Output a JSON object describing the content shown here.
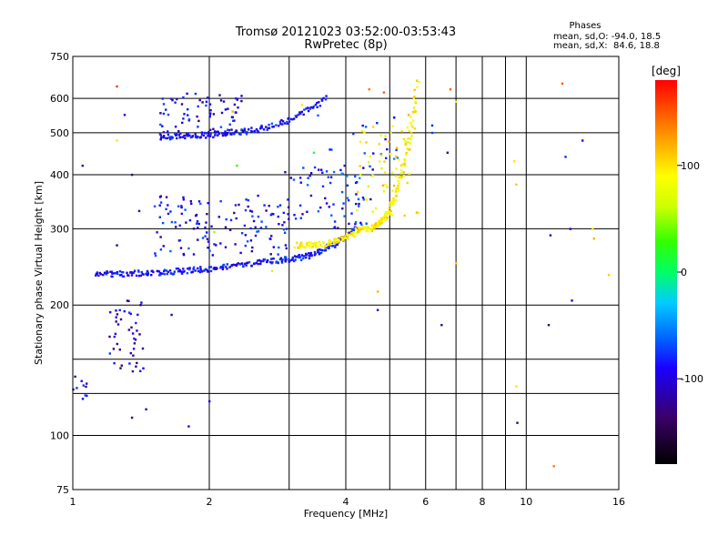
{
  "chart_data": {
    "type": "scatter",
    "title": "Tromsø 20121023 03:52:00-03:53:43",
    "subtitle": "RwPretec (8p)",
    "xlabel": "Frequency [MHz]",
    "ylabel": "Stationary phase Virtual Height [km]",
    "x_scale": "log",
    "y_scale": "log",
    "xlim": [
      1,
      16
    ],
    "ylim": [
      75,
      750
    ],
    "x_ticks": [
      1,
      2,
      4,
      6,
      8,
      10,
      16
    ],
    "x_tick_labels": [
      "1",
      "2",
      "4",
      "6",
      "8",
      "10",
      "16"
    ],
    "x_minor_grid": [
      3,
      5,
      7,
      9
    ],
    "y_ticks": [
      75,
      100,
      200,
      300,
      400,
      500,
      600,
      750
    ],
    "y_tick_labels": [
      "75",
      "100",
      "200",
      "300",
      "400",
      "500",
      "600",
      "750"
    ],
    "y_minor_grid": [
      125,
      150
    ],
    "grid": true,
    "phase_stats": {
      "title": "Phases",
      "line_o": "mean, sd,O: -94.0, 18.5",
      "line_x": "mean, sd,X:  84.6, 18.8"
    },
    "colorbar": {
      "label": "[deg]",
      "range": [
        -180,
        180
      ],
      "ticks": [
        -100,
        0,
        100
      ],
      "tick_labels": [
        "-100",
        "0",
        "100"
      ]
    },
    "traces": [
      {
        "name": "",
        "mode": "O",
        "phase": -95,
        "x_range": [
          1.12,
          2.9
        ],
        "y_range": [
          236,
          255
        ],
        "n": 90
      },
      {
        "name": "",
        "mode": "O",
        "phase": -95,
        "x_range": [
          2.9,
          4.2
        ],
        "y_range": [
          255,
          300
        ],
        "n": 50
      },
      {
        "name": "",
        "mode": "O",
        "phase": -100,
        "x_range": [
          1.55,
          2.2
        ],
        "y_range": [
          490,
          500
        ],
        "n": 40
      },
      {
        "name": "",
        "mode": "O",
        "phase": -95,
        "x_range": [
          2.2,
          3.6
        ],
        "y_range": [
          500,
          600
        ],
        "n": 45
      },
      {
        "name": "",
        "mode": "X",
        "phase": 95,
        "x_range": [
          3.1,
          4.3
        ],
        "y_range": [
          275,
          300
        ],
        "n": 45
      },
      {
        "name": "",
        "mode": "X",
        "phase": 95,
        "x_range": [
          4.3,
          5.75
        ],
        "y_range": [
          300,
          650
        ],
        "n": 70
      }
    ],
    "clouds": [
      {
        "phase": -100,
        "x_range": [
          1.5,
          3.0
        ],
        "y_range": [
          260,
          360
        ],
        "n": 130
      },
      {
        "phase": -105,
        "x_range": [
          1.55,
          2.4
        ],
        "y_range": [
          500,
          620
        ],
        "n": 70
      },
      {
        "phase": -95,
        "x_range": [
          2.9,
          4.6
        ],
        "y_range": [
          300,
          420
        ],
        "n": 70
      },
      {
        "phase": -85,
        "x_range": [
          3.3,
          5.3
        ],
        "y_range": [
          390,
          560
        ],
        "n": 25
      },
      {
        "phase": 95,
        "x_range": [
          4.2,
          5.8
        ],
        "y_range": [
          320,
          520
        ],
        "n": 60
      },
      {
        "phase": -110,
        "x_range": [
          1.2,
          1.43
        ],
        "y_range": [
          140,
          205
        ],
        "n": 45
      },
      {
        "phase": -105,
        "x_range": [
          1.0,
          1.08
        ],
        "y_range": [
          120,
          137
        ],
        "n": 10
      }
    ],
    "scatter_points": [
      [
        1.05,
        420,
        -120
      ],
      [
        1.25,
        640,
        160
      ],
      [
        1.3,
        550,
        -100
      ],
      [
        1.35,
        400,
        -140
      ],
      [
        1.25,
        480,
        100
      ],
      [
        1.65,
        190,
        -120
      ],
      [
        1.8,
        105,
        -110
      ],
      [
        1.45,
        115,
        -130
      ],
      [
        1.35,
        110,
        -140
      ],
      [
        2.0,
        120,
        -100
      ],
      [
        2.05,
        295,
        50
      ],
      [
        2.25,
        560,
        120
      ],
      [
        2.3,
        420,
        30
      ],
      [
        2.75,
        240,
        60
      ],
      [
        3.2,
        580,
        100
      ],
      [
        3.4,
        450,
        20
      ],
      [
        4.7,
        195,
        -110
      ],
      [
        4.7,
        215,
        120
      ],
      [
        4.85,
        620,
        150
      ],
      [
        4.5,
        630,
        140
      ],
      [
        5.5,
        550,
        120
      ],
      [
        5.7,
        560,
        110
      ],
      [
        6.2,
        520,
        -90
      ],
      [
        6.2,
        500,
        -80
      ],
      [
        6.5,
        180,
        -130
      ],
      [
        6.7,
        450,
        -120
      ],
      [
        6.8,
        630,
        150
      ],
      [
        7.0,
        590,
        80
      ],
      [
        7.0,
        250,
        110
      ],
      [
        9.4,
        430,
        100
      ],
      [
        9.5,
        380,
        110
      ],
      [
        9.5,
        130,
        100
      ],
      [
        9.55,
        107,
        -130
      ],
      [
        11.2,
        180,
        -140
      ],
      [
        11.3,
        290,
        -120
      ],
      [
        11.5,
        85,
        140
      ],
      [
        12.0,
        650,
        150
      ],
      [
        12.2,
        440,
        -90
      ],
      [
        12.5,
        300,
        -100
      ],
      [
        12.6,
        205,
        -110
      ],
      [
        13.3,
        480,
        -100
      ],
      [
        14.0,
        300,
        100
      ],
      [
        14.1,
        285,
        120
      ],
      [
        15.2,
        235,
        110
      ],
      [
        1.25,
        275,
        -130
      ],
      [
        1.4,
        330,
        -110
      ],
      [
        2.1,
        320,
        -120
      ],
      [
        2.65,
        255,
        -80
      ]
    ]
  }
}
